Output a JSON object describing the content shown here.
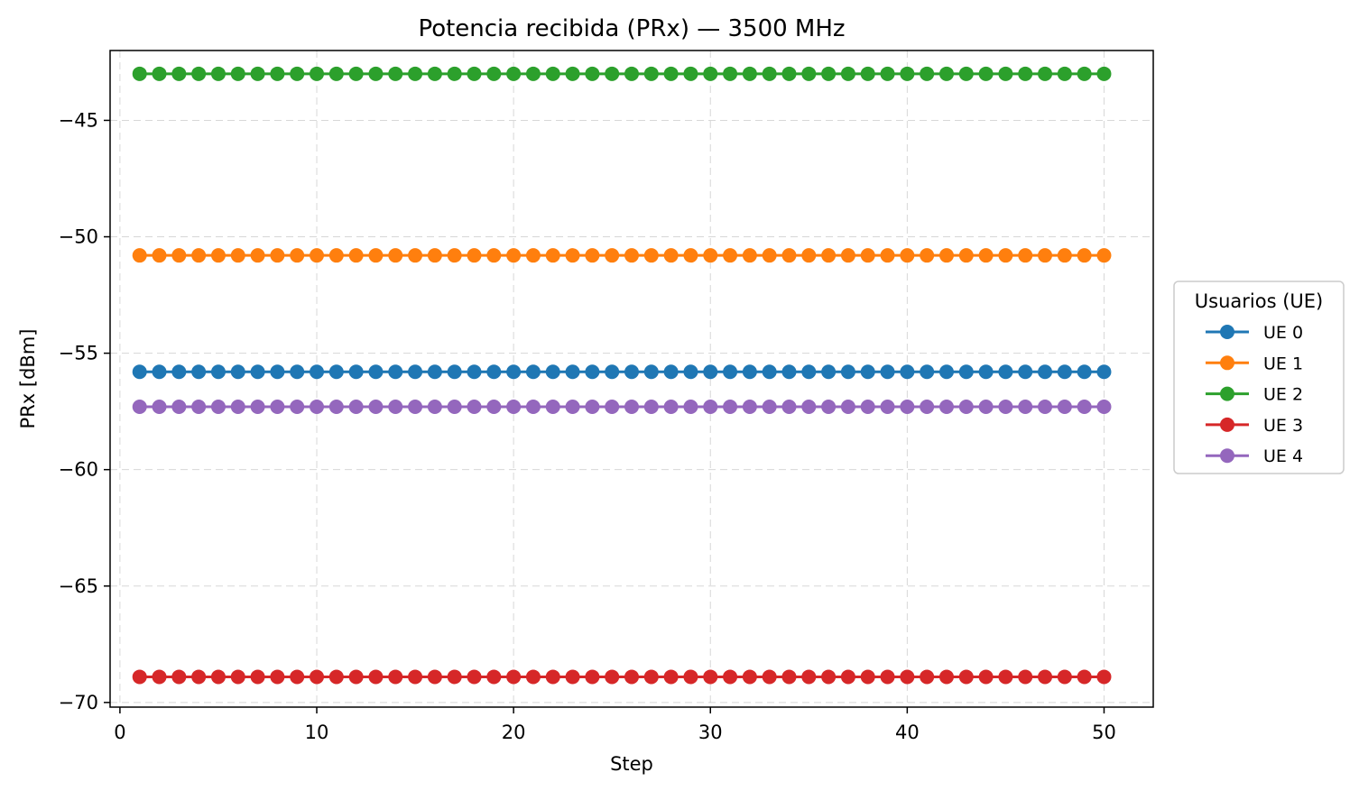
{
  "chart_data": {
    "type": "line",
    "title": "Potencia recibida (PRx) — 3500 MHz",
    "xlabel": "Step",
    "ylabel": "PRx [dBm]",
    "xlim": [
      -0.5,
      52.5
    ],
    "ylim": [
      -70.2,
      -42.0
    ],
    "x_ticks": [
      0,
      10,
      20,
      30,
      40,
      50
    ],
    "y_ticks": [
      -45,
      -50,
      -55,
      -60,
      -65,
      -70
    ],
    "x_tick_labels": [
      "0",
      "10",
      "20",
      "30",
      "40",
      "50"
    ],
    "y_tick_labels": [
      "−45",
      "−50",
      "−55",
      "−60",
      "−65",
      "−70"
    ],
    "grid": true,
    "legend": {
      "title": "Usuarios (UE)",
      "placement": "outside-right"
    },
    "x_start": 1,
    "x_end": 50,
    "series": [
      {
        "name": "UE 0",
        "color": "#1f77b4",
        "value": -55.8
      },
      {
        "name": "UE 1",
        "color": "#ff7f0e",
        "value": -50.8
      },
      {
        "name": "UE 2",
        "color": "#2ca02c",
        "value": -43.0
      },
      {
        "name": "UE 3",
        "color": "#d62728",
        "value": -68.9
      },
      {
        "name": "UE 4",
        "color": "#9467bd",
        "value": -57.3
      }
    ]
  }
}
